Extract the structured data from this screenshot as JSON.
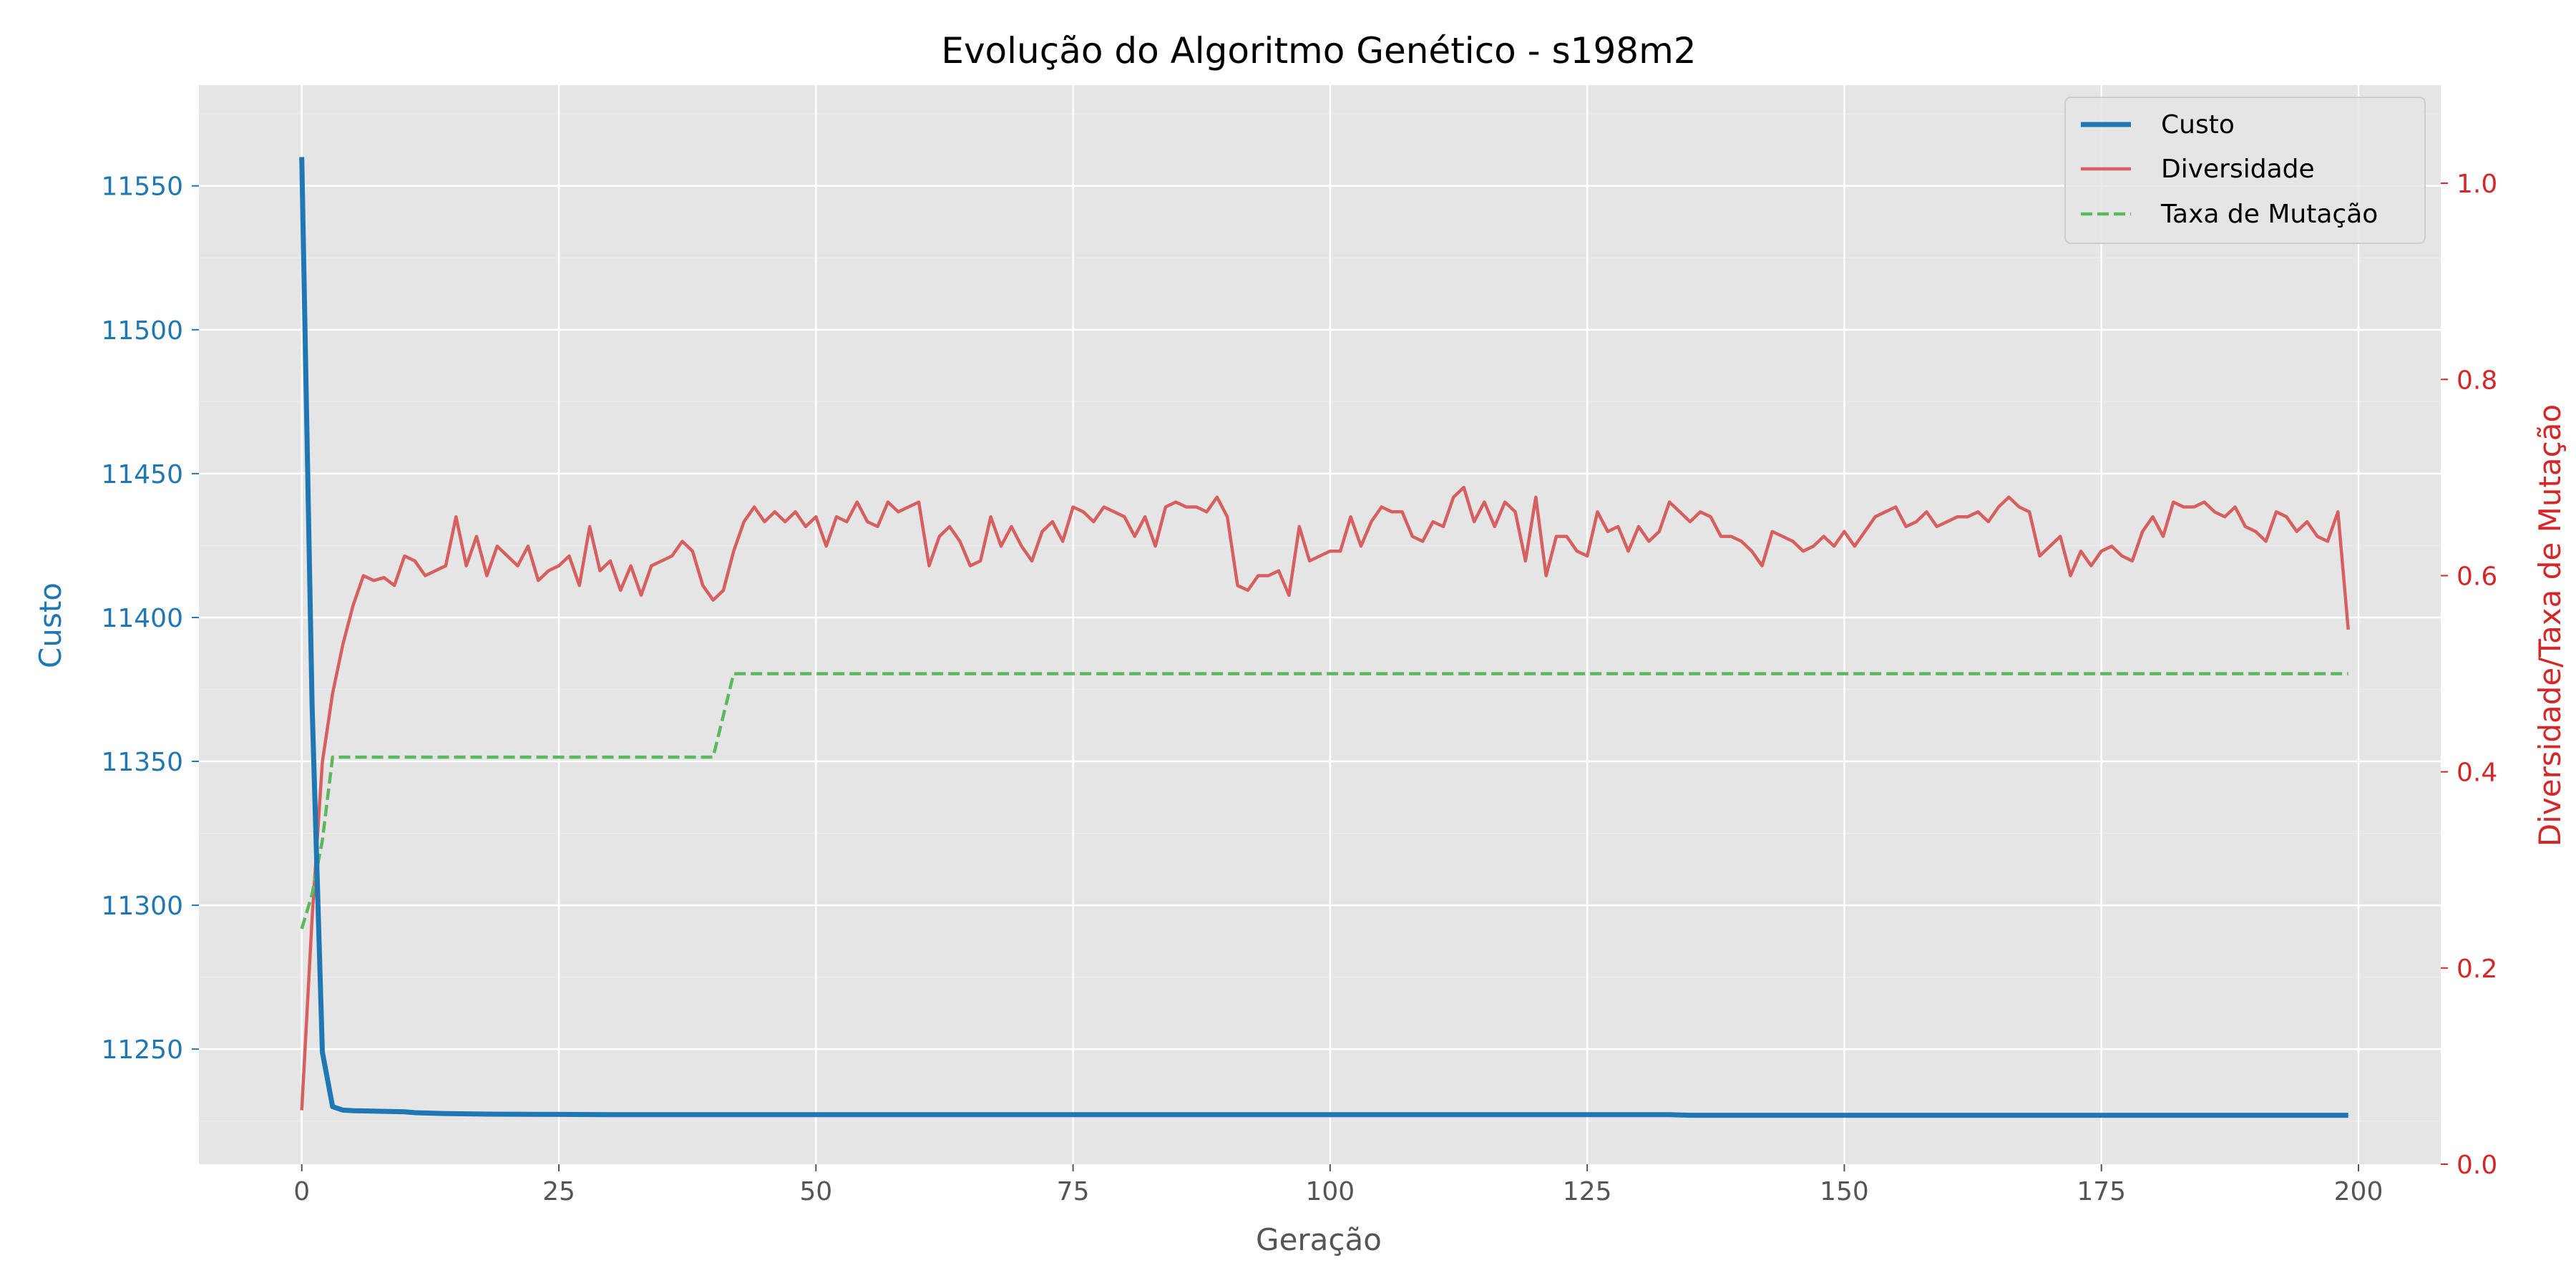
{
  "chart_data": {
    "type": "line",
    "title": "Evolução do Algoritmo Genético - s198m2",
    "xlabel": "Geração",
    "ylabel_left": "Custo",
    "ylabel_right": "Diversidade/Taxa de Mutação",
    "xlim": [
      -10,
      208
    ],
    "ylim_left": [
      11210,
      11585
    ],
    "ylim_right": [
      0,
      1.1
    ],
    "xticks": [
      "0",
      "25",
      "50",
      "75",
      "100",
      "125",
      "150",
      "175",
      "200"
    ],
    "yticks_left": [
      "11250",
      "11300",
      "11350",
      "11400",
      "11450",
      "11500",
      "11550"
    ],
    "yticks_right": [
      "0.0",
      "0.2",
      "0.4",
      "0.6",
      "0.8",
      "1.0"
    ],
    "grid": true,
    "legend_position": "top-right",
    "series": [
      {
        "name": "Custo",
        "axis": "left",
        "color": "#1f77b4",
        "style": "solid",
        "points": [
          [
            0,
            11560
          ],
          [
            1,
            11370
          ],
          [
            2,
            11249
          ],
          [
            3,
            11230
          ],
          [
            4,
            11228.8
          ],
          [
            5,
            11228.6
          ],
          [
            10,
            11228.2
          ],
          [
            11,
            11227.9
          ],
          [
            14,
            11227.6
          ],
          [
            18,
            11227.4
          ],
          [
            25,
            11227.3
          ],
          [
            30,
            11227.2
          ],
          [
            60,
            11227.2
          ],
          [
            100,
            11227.2
          ],
          [
            133,
            11227.2
          ],
          [
            135,
            11227.0
          ],
          [
            170,
            11227.0
          ],
          [
            199,
            11227.0
          ]
        ]
      },
      {
        "name": "Diversidade",
        "axis": "right",
        "color": "#d65f5f",
        "style": "solid",
        "values": [
          0.055,
          0.25,
          0.41,
          0.48,
          0.53,
          0.57,
          0.6,
          0.595,
          0.598,
          0.59,
          0.62,
          0.615,
          0.6,
          0.605,
          0.61,
          0.66,
          0.61,
          0.64,
          0.6,
          0.63,
          0.62,
          0.61,
          0.63,
          0.595,
          0.605,
          0.61,
          0.62,
          0.59,
          0.65,
          0.605,
          0.615,
          0.585,
          0.61,
          0.58,
          0.61,
          0.615,
          0.62,
          0.635,
          0.625,
          0.59,
          0.575,
          0.585,
          0.625,
          0.655,
          0.67,
          0.655,
          0.665,
          0.655,
          0.665,
          0.65,
          0.66,
          0.63,
          0.66,
          0.655,
          0.675,
          0.655,
          0.65,
          0.675,
          0.665,
          0.67,
          0.675,
          0.61,
          0.64,
          0.65,
          0.635,
          0.61,
          0.615,
          0.66,
          0.63,
          0.65,
          0.63,
          0.615,
          0.645,
          0.655,
          0.635,
          0.67,
          0.665,
          0.655,
          0.67,
          0.665,
          0.66,
          0.64,
          0.66,
          0.63,
          0.67,
          0.675,
          0.67,
          0.67,
          0.665,
          0.68,
          0.66,
          0.59,
          0.585,
          0.6,
          0.6,
          0.605,
          0.58,
          0.65,
          0.615,
          0.62,
          0.625,
          0.625,
          0.66,
          0.63,
          0.655,
          0.67,
          0.665,
          0.665,
          0.64,
          0.635,
          0.655,
          0.65,
          0.68,
          0.69,
          0.655,
          0.675,
          0.65,
          0.675,
          0.665,
          0.615,
          0.68,
          0.6,
          0.64,
          0.64,
          0.625,
          0.62,
          0.665,
          0.645,
          0.65,
          0.625,
          0.65,
          0.635,
          0.645,
          0.675,
          0.665,
          0.655,
          0.665,
          0.66,
          0.64,
          0.64,
          0.635,
          0.625,
          0.61,
          0.645,
          0.64,
          0.635,
          0.625,
          0.63,
          0.64,
          0.63,
          0.645,
          0.63,
          0.645,
          0.66,
          0.665,
          0.67,
          0.65,
          0.655,
          0.665,
          0.65,
          0.655,
          0.66,
          0.66,
          0.665,
          0.655,
          0.67,
          0.68,
          0.67,
          0.665,
          0.62,
          0.63,
          0.64,
          0.6,
          0.625,
          0.61,
          0.625,
          0.63,
          0.62,
          0.615,
          0.645,
          0.66,
          0.64,
          0.675,
          0.67,
          0.67,
          0.675,
          0.665,
          0.66,
          0.67,
          0.65,
          0.645,
          0.635,
          0.665,
          0.66,
          0.645,
          0.655,
          0.64,
          0.635,
          0.665,
          0.545
        ]
      },
      {
        "name": "Taxa de Mutação",
        "axis": "right",
        "color": "#5cb85c",
        "style": "dashed",
        "points": [
          [
            0,
            0.24
          ],
          [
            1,
            0.275
          ],
          [
            2,
            0.33
          ],
          [
            3,
            0.415
          ],
          [
            40,
            0.415
          ],
          [
            42,
            0.5
          ],
          [
            199,
            0.5
          ]
        ]
      }
    ]
  }
}
